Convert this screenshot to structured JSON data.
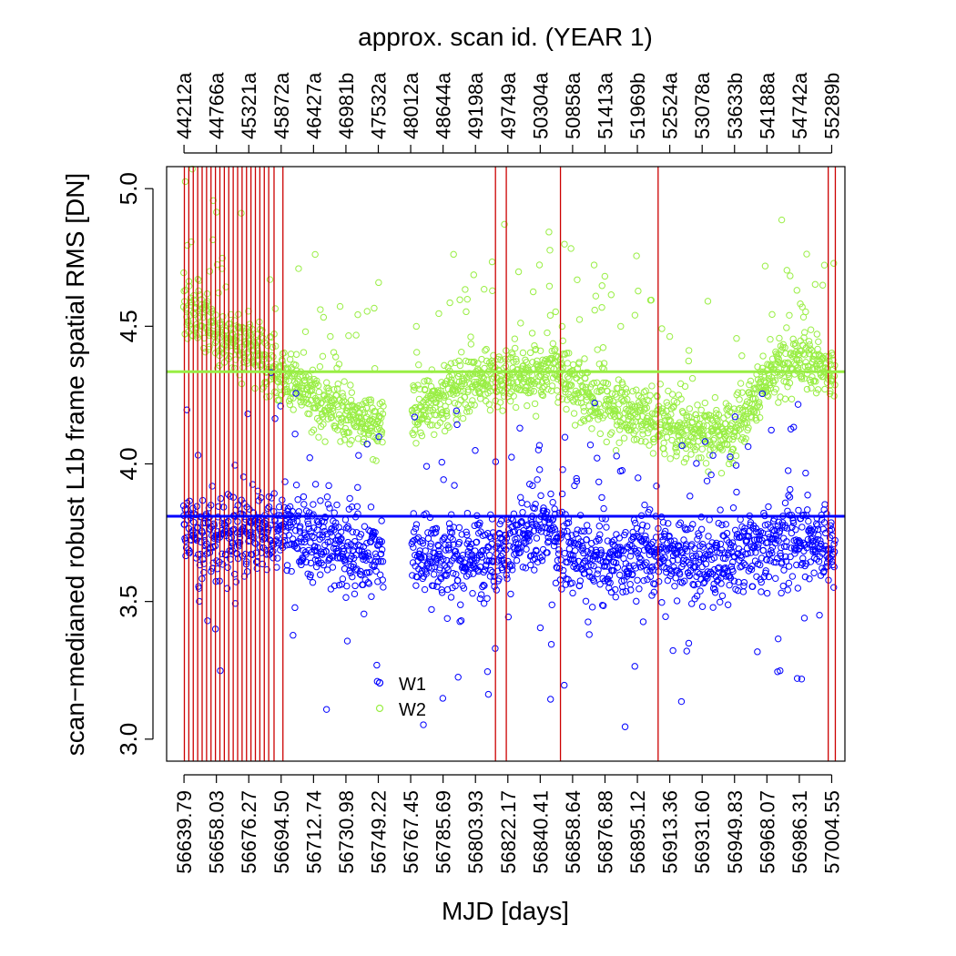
{
  "chart_data": {
    "type": "scatter",
    "title_top": "approx. scan id.   (YEAR 1)",
    "xlabel": "MJD [days]",
    "ylabel": "scan−medianed robust L1b frame spatial RMS [DN]",
    "xlim": [
      56630,
      57012
    ],
    "ylim": [
      2.92,
      5.08
    ],
    "grid": false,
    "legend_position": "bottom-center",
    "x_ticks": [
      56639.79,
      56658.03,
      56676.27,
      56694.5,
      56712.74,
      56730.98,
      56749.22,
      56767.45,
      56785.69,
      56803.93,
      56822.17,
      56840.41,
      56858.64,
      56876.88,
      56895.12,
      56913.36,
      56931.6,
      56949.83,
      56968.07,
      56986.31,
      57004.55
    ],
    "x_tick_labels": [
      "56639.79",
      "56658.03",
      "56676.27",
      "56694.50",
      "56712.74",
      "56730.98",
      "56749.22",
      "56767.45",
      "56785.69",
      "56803.93",
      "56822.17",
      "56840.41",
      "56858.64",
      "56876.88",
      "56895.12",
      "56913.36",
      "56931.60",
      "56949.83",
      "56968.07",
      "56986.31",
      "57004.55"
    ],
    "top_tick_labels": [
      "44212a",
      "44766a",
      "45321a",
      "45872a",
      "46427a",
      "46981b",
      "47532a",
      "48012a",
      "48644a",
      "49198a",
      "49749a",
      "50304a",
      "50858a",
      "51413a",
      "51969b",
      "52524a",
      "53078a",
      "53633b",
      "54188a",
      "54742a",
      "55289b"
    ],
    "y_ticks": [
      3.0,
      3.5,
      4.0,
      4.5,
      5.0
    ],
    "y_tick_labels": [
      "3.0",
      "3.5",
      "4.0",
      "4.5",
      "5.0"
    ],
    "series": [
      {
        "name": "W1",
        "color": "#0000ff",
        "median": 3.81,
        "approx_profile": [
          [
            56640,
            3.75
          ],
          [
            56660,
            3.73
          ],
          [
            56680,
            3.76
          ],
          [
            56700,
            3.74
          ],
          [
            56720,
            3.71
          ],
          [
            56740,
            3.69
          ],
          [
            56757,
            3.69
          ],
          [
            56775,
            3.68
          ],
          [
            56795,
            3.66
          ],
          [
            56815,
            3.68
          ],
          [
            56830,
            3.72
          ],
          [
            56845,
            3.76
          ],
          [
            56860,
            3.66
          ],
          [
            56880,
            3.65
          ],
          [
            56900,
            3.67
          ],
          [
            56915,
            3.68
          ],
          [
            56935,
            3.63
          ],
          [
            56955,
            3.67
          ],
          [
            56975,
            3.72
          ],
          [
            56995,
            3.72
          ],
          [
            57005,
            3.69
          ]
        ],
        "approx_spread": 0.13
      },
      {
        "name": "W2",
        "color": "#99ee44",
        "median": 4.335,
        "approx_profile": [
          [
            56640,
            4.58
          ],
          [
            56660,
            4.47
          ],
          [
            56680,
            4.42
          ],
          [
            56700,
            4.3
          ],
          [
            56715,
            4.22
          ],
          [
            56735,
            4.17
          ],
          [
            56757,
            4.13
          ],
          [
            56775,
            4.21
          ],
          [
            56795,
            4.28
          ],
          [
            56815,
            4.32
          ],
          [
            56835,
            4.33
          ],
          [
            56850,
            4.34
          ],
          [
            56865,
            4.25
          ],
          [
            56885,
            4.2
          ],
          [
            56905,
            4.16
          ],
          [
            56925,
            4.13
          ],
          [
            56945,
            4.11
          ],
          [
            56960,
            4.23
          ],
          [
            56975,
            4.35
          ],
          [
            56990,
            4.38
          ],
          [
            57005,
            4.33
          ]
        ],
        "approx_spread": 0.1
      }
    ],
    "vertical_line_color": "#cc0000",
    "vertical_lines_x": [
      56640.0,
      56642.5,
      56645.0,
      56647.5,
      56650.0,
      56652.5,
      56655.0,
      56657.5,
      56660.0,
      56662.5,
      56665.0,
      56667.5,
      56670.0,
      56672.5,
      56675.0,
      56677.5,
      56680.0,
      56682.5,
      56685.0,
      56687.5,
      56690.5,
      56695.5,
      56815.2,
      56821.3,
      56851.8,
      56906.8,
      57002.6,
      57006.6
    ],
    "gap": [
      56752,
      56768
    ]
  },
  "legend": {
    "items": [
      {
        "label": "W1",
        "color": "#0000ff"
      },
      {
        "label": "W2",
        "color": "#99ee44"
      }
    ]
  }
}
